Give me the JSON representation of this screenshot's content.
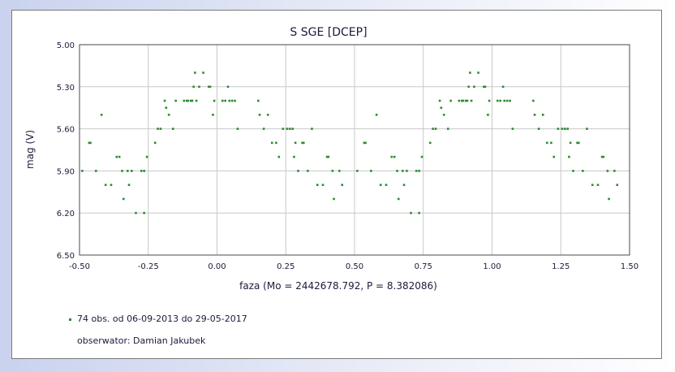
{
  "chart_data": {
    "type": "scatter",
    "title": "S SGE [DCEP]",
    "xlabel": "faza (Mo = 2442678.792, P = 8.382086)",
    "ylabel": "mag (V)",
    "xlim": [
      -0.5,
      1.5
    ],
    "ylim": [
      5.0,
      6.5
    ],
    "y_inverted": true,
    "grid": true,
    "x_ticks": [
      "-0.50",
      "-0.25",
      "0.00",
      "0.25",
      "0.50",
      "0.75",
      "1.00",
      "1.25",
      "1.50"
    ],
    "y_ticks": [
      "5.00",
      "5.30",
      "5.60",
      "5.90",
      "6.20",
      "6.50"
    ],
    "marker_color": "#2e8b2e",
    "series": [
      {
        "name": "74 obs. od 06-09-2013 do 29-05-2017",
        "points": [
          [
            -0.49,
            5.9
          ],
          [
            -0.465,
            5.7
          ],
          [
            -0.46,
            5.7
          ],
          [
            -0.44,
            5.9
          ],
          [
            -0.42,
            5.5
          ],
          [
            -0.405,
            6.0
          ],
          [
            -0.385,
            6.0
          ],
          [
            -0.365,
            5.8
          ],
          [
            -0.355,
            5.8
          ],
          [
            -0.345,
            5.9
          ],
          [
            -0.34,
            6.1
          ],
          [
            -0.325,
            5.9
          ],
          [
            -0.32,
            6.0
          ],
          [
            -0.31,
            5.9
          ],
          [
            -0.295,
            6.2
          ],
          [
            -0.275,
            5.9
          ],
          [
            -0.265,
            5.9
          ],
          [
            -0.265,
            6.2
          ],
          [
            -0.255,
            5.8
          ],
          [
            -0.225,
            5.7
          ],
          [
            -0.215,
            5.6
          ],
          [
            -0.205,
            5.6
          ],
          [
            -0.19,
            5.4
          ],
          [
            -0.185,
            5.45
          ],
          [
            -0.175,
            5.5
          ],
          [
            -0.16,
            5.6
          ],
          [
            -0.15,
            5.4
          ],
          [
            -0.12,
            5.4
          ],
          [
            -0.11,
            5.4
          ],
          [
            -0.105,
            5.4
          ],
          [
            -0.095,
            5.4
          ],
          [
            -0.09,
            5.4
          ],
          [
            -0.085,
            5.3
          ],
          [
            -0.08,
            5.2
          ],
          [
            -0.075,
            5.4
          ],
          [
            -0.065,
            5.3
          ],
          [
            -0.05,
            5.2
          ],
          [
            -0.03,
            5.3
          ],
          [
            -0.025,
            5.3
          ],
          [
            -0.015,
            5.5
          ],
          [
            -0.01,
            5.4
          ],
          [
            0.02,
            5.4
          ],
          [
            0.03,
            5.4
          ],
          [
            0.04,
            5.3
          ],
          [
            0.045,
            5.4
          ],
          [
            0.055,
            5.4
          ],
          [
            0.065,
            5.4
          ],
          [
            0.075,
            5.6
          ],
          [
            0.15,
            5.4
          ],
          [
            0.155,
            5.5
          ],
          [
            0.17,
            5.6
          ],
          [
            0.185,
            5.5
          ],
          [
            0.2,
            5.7
          ],
          [
            0.215,
            5.7
          ],
          [
            0.225,
            5.8
          ],
          [
            0.24,
            5.6
          ],
          [
            0.255,
            5.6
          ],
          [
            0.265,
            5.6
          ],
          [
            0.275,
            5.6
          ],
          [
            0.28,
            5.8
          ],
          [
            0.285,
            5.7
          ],
          [
            0.295,
            5.9
          ],
          [
            0.31,
            5.7
          ],
          [
            0.315,
            5.7
          ],
          [
            0.33,
            5.9
          ],
          [
            0.345,
            5.6
          ],
          [
            0.365,
            6.0
          ],
          [
            0.385,
            6.0
          ],
          [
            0.4,
            5.8
          ],
          [
            0.405,
            5.8
          ],
          [
            0.42,
            5.9
          ],
          [
            0.425,
            6.1
          ],
          [
            0.445,
            5.9
          ],
          [
            0.455,
            6.0
          ]
        ]
      }
    ]
  },
  "legend": {
    "entry": "74 obs. od 06-09-2013 do 29-05-2017",
    "observer": "obserwator: Damian Jakubek"
  }
}
